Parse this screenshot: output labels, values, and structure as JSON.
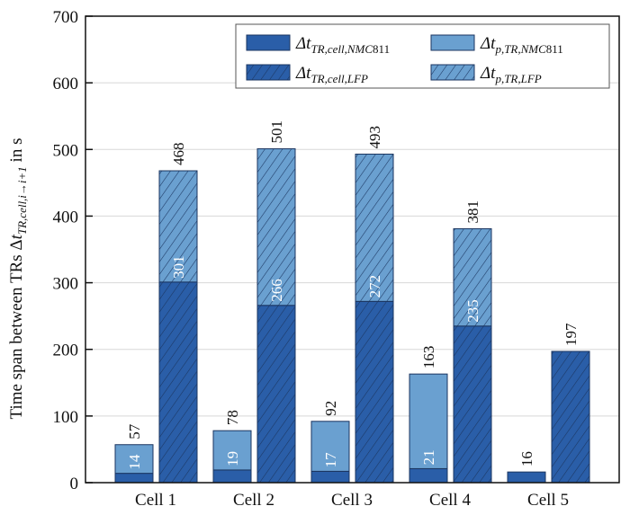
{
  "chart_data": {
    "type": "bar",
    "stacked": true,
    "grouped": true,
    "categories": [
      "Cell 1",
      "Cell 2",
      "Cell 3",
      "Cell 4",
      "Cell 5"
    ],
    "ylabel": "Time span between TRs Δt_TR,cell,i→i+1 in s",
    "ylabel_parts": {
      "main": "Time span between TRs Δ",
      "t": "t",
      "sub": "TR,cell,i→i+1",
      "tail": " in s"
    },
    "ylim": [
      0,
      700
    ],
    "yticks": [
      0,
      100,
      200,
      300,
      400,
      500,
      600,
      700
    ],
    "grid": true,
    "legend_position": "top-right",
    "groups": [
      {
        "name": "NMC811",
        "series": [
          {
            "name": "Δt_TR,cell,NMC811",
            "legend": {
              "t": "Δt",
              "sub": "TR,cell,NMC",
              "tail": "811"
            },
            "values": [
              14,
              19,
              17,
              21,
              16
            ],
            "color": "#2a5ea8",
            "hatched": false
          },
          {
            "name": "Δt_p,TR,NMC811",
            "legend": {
              "t": "Δt",
              "sub": "p,TR,NMC",
              "tail": "811"
            },
            "values": [
              43,
              59,
              75,
              142,
              0
            ],
            "color": "#6aa0d0",
            "hatched": false
          }
        ],
        "totals": [
          57,
          78,
          92,
          163,
          16
        ],
        "inner_labels": [
          "14",
          "19",
          "17",
          "21",
          null
        ]
      },
      {
        "name": "LFP",
        "series": [
          {
            "name": "Δt_TR,cell,LFP",
            "legend": {
              "t": "Δt",
              "sub": "TR,cell,LFP",
              "tail": ""
            },
            "values": [
              301,
              266,
              272,
              235,
              197
            ],
            "color": "#2a5ea8",
            "hatched": true
          },
          {
            "name": "Δt_p,TR,LFP",
            "legend": {
              "t": "Δt",
              "sub": "p,TR,LFP",
              "tail": ""
            },
            "values": [
              167,
              235,
              221,
              146,
              0
            ],
            "color": "#6aa0d0",
            "hatched": true
          }
        ],
        "totals": [
          468,
          501,
          493,
          381,
          197
        ],
        "inner_labels": [
          "301",
          "266",
          "272",
          "235",
          null
        ]
      }
    ],
    "edge_color": "#1b3560"
  }
}
